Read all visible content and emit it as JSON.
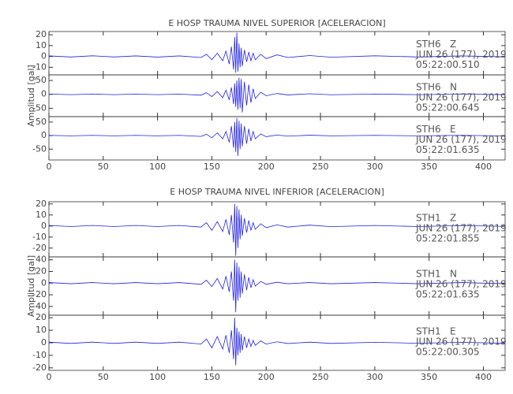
{
  "chart_data": [
    {
      "type": "line",
      "title": "E HOSP TRAUMA NIVEL SUPERIOR [ACELERACION]",
      "ylabel": "Amplitud [gal]",
      "xlim": [
        0,
        420
      ],
      "xticks": [
        0,
        50,
        100,
        150,
        200,
        250,
        300,
        350,
        400
      ],
      "x": [
        0,
        20,
        40,
        60,
        80,
        100,
        120,
        140,
        145,
        150,
        155,
        160,
        163,
        166,
        168,
        170,
        171,
        172,
        173,
        174,
        175,
        176,
        177,
        178,
        180,
        182,
        184,
        186,
        188,
        190,
        195,
        200,
        210,
        220,
        240,
        260,
        300,
        340,
        380,
        420
      ],
      "subplots": [
        {
          "ylim": [
            -17,
            23
          ],
          "yticks": [
            -10,
            0,
            10,
            20
          ],
          "labels": [
            "STH6   Z",
            "JUN 26 (177), 2019",
            "05:22:00.510"
          ],
          "series": [
            {
              "color": "#2020e0",
              "values": [
                0.5,
                -0.5,
                0.6,
                -0.5,
                0.5,
                -0.6,
                0.5,
                -1,
                2,
                -3,
                3,
                -4,
                5,
                -7,
                9,
                -12,
                18,
                -15,
                22,
                -14,
                12,
                -10,
                8,
                -9,
                6,
                -5,
                4,
                -4,
                3,
                -3,
                2,
                -2,
                1.5,
                -1,
                0.8,
                -0.7,
                0.6,
                -0.5,
                0.5,
                -0.4
              ]
            }
          ]
        },
        {
          "ylim": [
            -80,
            70
          ],
          "yticks": [
            -50,
            0,
            50
          ],
          "labels": [
            "STH6   N",
            "JUN 26 (177), 2019",
            "05:22:00.645"
          ],
          "series": [
            {
              "color": "#2020e0",
              "values": [
                1,
                -1,
                1,
                -1,
                1,
                -1,
                1,
                -3,
                6,
                -8,
                10,
                -12,
                15,
                -20,
                25,
                -35,
                40,
                -45,
                50,
                -55,
                60,
                -50,
                55,
                -65,
                45,
                -40,
                35,
                -30,
                20,
                -15,
                8,
                -5,
                3,
                -2,
                2,
                -1.5,
                1,
                -1,
                1,
                -1
              ]
            }
          ]
        },
        {
          "ylim": [
            -90,
            70
          ],
          "yticks": [
            -50,
            0,
            50
          ],
          "labels": [
            "STH6   E",
            "JUN 26 (177), 2019",
            "05:22:01.635"
          ],
          "series": [
            {
              "color": "#2020e0",
              "values": [
                1,
                -1,
                1,
                -1,
                1,
                -1,
                1,
                -3,
                5,
                -8,
                10,
                -12,
                15,
                -25,
                35,
                -45,
                50,
                -60,
                65,
                -75,
                55,
                -50,
                45,
                -40,
                35,
                -30,
                25,
                -20,
                15,
                -12,
                6,
                -4,
                2,
                -2,
                1.5,
                -1,
                1,
                -1,
                1,
                -1
              ]
            }
          ]
        }
      ]
    },
    {
      "type": "line",
      "title": "E HOSP TRAUMA NIVEL INFERIOR [ACELERACION]",
      "ylabel": "Amplitud [gal]",
      "xlim": [
        0,
        420
      ],
      "xticks": [
        0,
        50,
        100,
        150,
        200,
        250,
        300,
        350,
        400
      ],
      "x": [
        0,
        20,
        40,
        60,
        80,
        100,
        120,
        140,
        145,
        150,
        155,
        160,
        163,
        166,
        168,
        170,
        171,
        172,
        173,
        174,
        175,
        176,
        177,
        178,
        180,
        182,
        184,
        186,
        188,
        190,
        195,
        200,
        210,
        220,
        240,
        260,
        300,
        340,
        380,
        420
      ],
      "subplots": [
        {
          "ylim": [
            -28,
            22
          ],
          "yticks": [
            -20,
            -10,
            0,
            10,
            20
          ],
          "labels": [
            "STH1   Z",
            "JUN 26 (177), 2019",
            "05:22:01.855"
          ],
          "series": [
            {
              "color": "#2020e0",
              "values": [
                0.5,
                -0.5,
                0.5,
                -0.5,
                0.5,
                -0.5,
                0.5,
                -1,
                3,
                -4,
                4,
                -5,
                6,
                -8,
                10,
                -15,
                20,
                -27,
                18,
                -20,
                15,
                -12,
                10,
                -9,
                7,
                -6,
                5,
                -4,
                3,
                -3,
                2,
                -1.5,
                1,
                -1,
                0.8,
                -0.6,
                0.5,
                -0.5,
                0.4,
                -0.4
              ]
            }
          ]
        },
        {
          "ylim": [
            -55,
            45
          ],
          "yticks": [
            -40,
            -20,
            0,
            20,
            40
          ],
          "labels": [
            "STH1   N",
            "JUN 26 (177), 2019",
            "05:22:01.635"
          ],
          "series": [
            {
              "color": "#2020e0",
              "values": [
                1,
                -1,
                1,
                -1,
                1,
                -1,
                1,
                -2,
                5,
                -6,
                8,
                -10,
                12,
                -15,
                20,
                -30,
                40,
                -50,
                35,
                -30,
                28,
                -25,
                20,
                -18,
                15,
                -12,
                10,
                -8,
                6,
                -5,
                3,
                -2,
                1.5,
                -1,
                1,
                -1,
                1,
                -1,
                1,
                -1
              ]
            }
          ]
        },
        {
          "ylim": [
            -22,
            22
          ],
          "yticks": [
            -20,
            -10,
            0,
            10,
            20
          ],
          "labels": [
            "STH1   E",
            "JUN 26 (177), 2019",
            "05:22:00.305"
          ],
          "series": [
            {
              "color": "#2020e0",
              "values": [
                0.5,
                -0.5,
                0.5,
                -0.5,
                0.5,
                -0.5,
                0.5,
                -1,
                3,
                -4,
                5,
                -5,
                6,
                -8,
                10,
                -13,
                20,
                -18,
                12,
                -10,
                9,
                -8,
                7,
                -6,
                5,
                -4,
                3,
                -3,
                2,
                -2,
                1.5,
                -1,
                0.8,
                -0.6,
                0.5,
                -0.5,
                0.4,
                -0.4,
                0.4,
                -0.4
              ]
            }
          ]
        }
      ]
    }
  ]
}
